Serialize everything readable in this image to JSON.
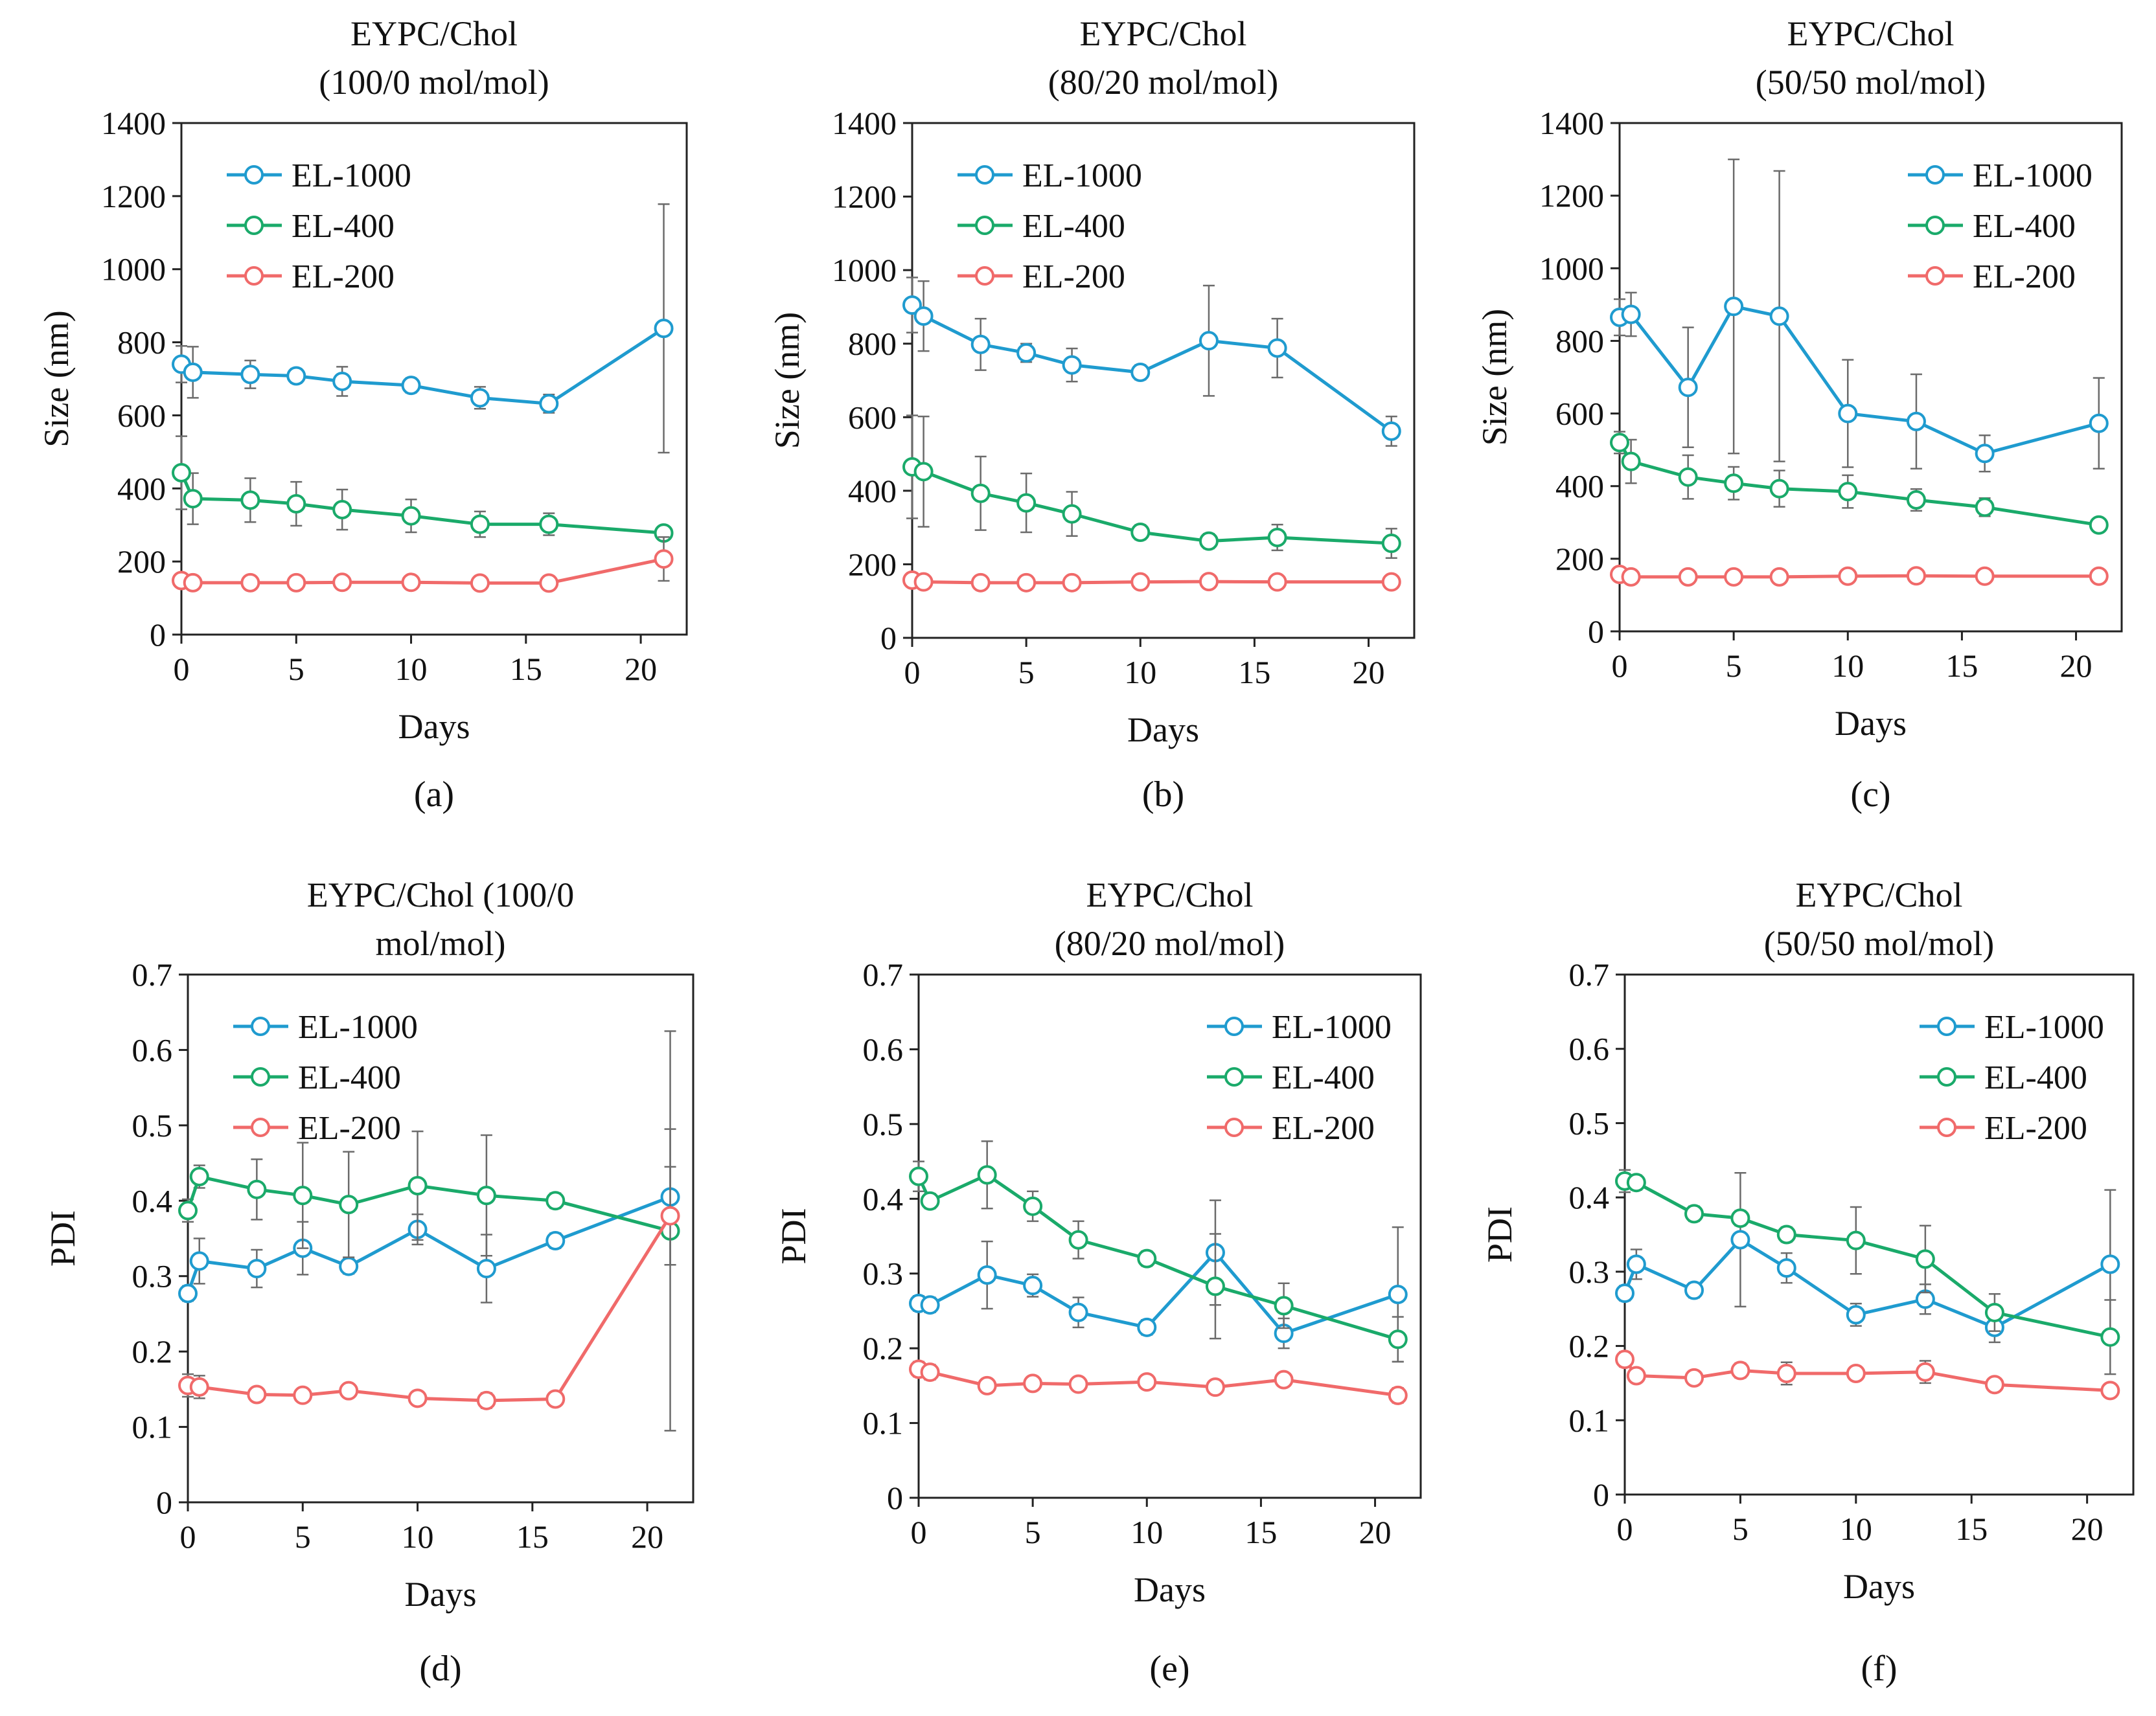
{
  "figure": {
    "series_colors": {
      "EL-1000": "#1f9bcf",
      "EL-400": "#1aaa6a",
      "EL-200": "#f06a6a"
    }
  },
  "chart_data": [
    {
      "panel": "(a)",
      "type": "line",
      "title_lines": [
        "EYPC/Chol",
        "(100/0 mol/mol)"
      ],
      "xlabel": "Days",
      "ylabel": "Size (nm)",
      "xlim": [
        0,
        22
      ],
      "ylim": [
        0,
        1400
      ],
      "xticks": [
        0,
        5,
        10,
        15,
        20
      ],
      "yticks": [
        0,
        200,
        400,
        600,
        800,
        1000,
        1200,
        1400
      ],
      "legend_position": "top-left",
      "series": [
        {
          "name": "EL-1000",
          "x": [
            0,
            0.5,
            3,
            5,
            7,
            10,
            13,
            16,
            21
          ],
          "y": [
            740,
            718,
            712,
            708,
            693,
            682,
            648,
            632,
            838
          ],
          "err": [
            50,
            70,
            38,
            20,
            40,
            20,
            30,
            25,
            340
          ]
        },
        {
          "name": "EL-400",
          "x": [
            0,
            0.5,
            3,
            5,
            7,
            10,
            13,
            16,
            21
          ],
          "y": [
            443,
            372,
            368,
            358,
            342,
            325,
            302,
            302,
            278
          ],
          "err": [
            100,
            70,
            60,
            60,
            55,
            45,
            35,
            30,
            15
          ]
        },
        {
          "name": "EL-200",
          "x": [
            0,
            0.5,
            3,
            5,
            7,
            10,
            13,
            16,
            21
          ],
          "y": [
            148,
            142,
            142,
            142,
            143,
            143,
            141,
            141,
            207
          ],
          "err": [
            8,
            8,
            5,
            5,
            5,
            5,
            5,
            5,
            60
          ]
        }
      ]
    },
    {
      "panel": "(b)",
      "type": "line",
      "title_lines": [
        "EYPC/Chol",
        "(80/20 mol/mol)"
      ],
      "xlabel": "Days",
      "ylabel": "Size (nm)",
      "xlim": [
        0,
        22
      ],
      "ylim": [
        0,
        1400
      ],
      "xticks": [
        0,
        5,
        10,
        15,
        20
      ],
      "yticks": [
        0,
        200,
        400,
        600,
        800,
        1000,
        1200,
        1400
      ],
      "legend_position": "top-left",
      "series": [
        {
          "name": "EL-1000",
          "x": [
            0,
            0.5,
            3,
            5,
            7,
            10,
            13,
            16,
            21
          ],
          "y": [
            905,
            875,
            798,
            775,
            742,
            722,
            808,
            788,
            562
          ],
          "err": [
            75,
            95,
            70,
            25,
            45,
            20,
            150,
            80,
            40
          ]
        },
        {
          "name": "EL-400",
          "x": [
            0,
            0.5,
            3,
            5,
            7,
            10,
            13,
            16,
            21
          ],
          "y": [
            465,
            452,
            393,
            367,
            337,
            287,
            263,
            273,
            257
          ],
          "err": [
            140,
            150,
            100,
            80,
            60,
            20,
            20,
            35,
            40
          ]
        },
        {
          "name": "EL-200",
          "x": [
            0,
            0.5,
            3,
            5,
            7,
            10,
            13,
            16,
            21
          ],
          "y": [
            157,
            152,
            150,
            150,
            150,
            152,
            153,
            152,
            152
          ],
          "err": [
            8,
            8,
            5,
            5,
            5,
            5,
            5,
            5,
            5
          ]
        }
      ]
    },
    {
      "panel": "(c)",
      "type": "line",
      "title_lines": [
        "EYPC/Chol",
        "(50/50 mol/mol)"
      ],
      "xlabel": "Days",
      "ylabel": "Size (nm)",
      "xlim": [
        0,
        22
      ],
      "ylim": [
        0,
        1400
      ],
      "xticks": [
        0,
        5,
        10,
        15,
        20
      ],
      "yticks": [
        0,
        200,
        400,
        600,
        800,
        1000,
        1200,
        1400
      ],
      "legend_position": "top-right",
      "series": [
        {
          "name": "EL-1000",
          "x": [
            0,
            0.5,
            3,
            5,
            7,
            10,
            13,
            16,
            21
          ],
          "y": [
            865,
            873,
            672,
            895,
            868,
            600,
            578,
            490,
            573
          ],
          "err": [
            50,
            60,
            165,
            405,
            400,
            148,
            130,
            50,
            125
          ]
        },
        {
          "name": "EL-400",
          "x": [
            0,
            0.5,
            3,
            5,
            7,
            10,
            13,
            16,
            21
          ],
          "y": [
            520,
            468,
            425,
            408,
            393,
            385,
            362,
            342,
            293
          ],
          "err": [
            30,
            60,
            60,
            45,
            50,
            45,
            30,
            25,
            15
          ]
        },
        {
          "name": "EL-200",
          "x": [
            0,
            0.5,
            3,
            5,
            7,
            10,
            13,
            16,
            21
          ],
          "y": [
            157,
            150,
            150,
            150,
            150,
            152,
            153,
            152,
            152
          ],
          "err": [
            8,
            8,
            5,
            5,
            5,
            5,
            5,
            5,
            5
          ]
        }
      ]
    },
    {
      "panel": "(d)",
      "type": "line",
      "title_lines": [
        "EYPC/Chol (100/0",
        "mol/mol)"
      ],
      "xlabel": "Days",
      "ylabel": "PDI",
      "xlim": [
        0,
        22
      ],
      "ylim": [
        0,
        0.7
      ],
      "xticks": [
        0,
        5,
        10,
        15,
        20
      ],
      "yticks": [
        0,
        0.1,
        0.2,
        0.3,
        0.4,
        0.5,
        0.6,
        0.7
      ],
      "legend_position": "top-left",
      "series": [
        {
          "name": "EL-1000",
          "x": [
            0,
            0.5,
            3,
            5,
            7,
            10,
            13,
            16,
            21
          ],
          "y": [
            0.277,
            0.32,
            0.31,
            0.337,
            0.313,
            0.362,
            0.31,
            0.347,
            0.405
          ],
          "err": [
            0.01,
            0.03,
            0.025,
            0.035,
            0.01,
            0.02,
            0.045,
            0.01,
            0.09
          ]
        },
        {
          "name": "EL-400",
          "x": [
            0,
            0.5,
            3,
            5,
            7,
            10,
            13,
            16,
            21
          ],
          "y": [
            0.387,
            0.432,
            0.415,
            0.407,
            0.395,
            0.42,
            0.407,
            0.4,
            0.36
          ],
          "err": [
            0.015,
            0.015,
            0.04,
            0.07,
            0.07,
            0.072,
            0.08,
            0.01,
            0.265
          ]
        },
        {
          "name": "EL-200",
          "x": [
            0,
            0.5,
            3,
            5,
            7,
            10,
            13,
            16,
            21
          ],
          "y": [
            0.155,
            0.153,
            0.143,
            0.142,
            0.148,
            0.138,
            0.135,
            0.137,
            0.38
          ],
          "err": [
            0.015,
            0.015,
            0.005,
            0.005,
            0.005,
            0.005,
            0.01,
            0.005,
            0.065
          ]
        }
      ]
    },
    {
      "panel": "(e)",
      "type": "line",
      "title_lines": [
        "EYPC/Chol",
        "(80/20 mol/mol)"
      ],
      "xlabel": "Days",
      "ylabel": "PDI",
      "xlim": [
        0,
        22
      ],
      "ylim": [
        0,
        0.7
      ],
      "xticks": [
        0,
        5,
        10,
        15,
        20
      ],
      "yticks": [
        0,
        0.1,
        0.2,
        0.3,
        0.4,
        0.5,
        0.6,
        0.7
      ],
      "legend_position": "top-right",
      "series": [
        {
          "name": "EL-1000",
          "x": [
            0,
            0.5,
            3,
            5,
            7,
            10,
            13,
            16,
            21
          ],
          "y": [
            0.26,
            0.258,
            0.298,
            0.284,
            0.248,
            0.228,
            0.328,
            0.22,
            0.272
          ],
          "err": [
            0.01,
            0.01,
            0.045,
            0.015,
            0.02,
            0.01,
            0.07,
            0.02,
            0.09
          ]
        },
        {
          "name": "EL-400",
          "x": [
            0,
            0.5,
            3,
            5,
            7,
            10,
            13,
            16,
            21
          ],
          "y": [
            0.43,
            0.397,
            0.432,
            0.39,
            0.345,
            0.32,
            0.283,
            0.257,
            0.212
          ],
          "err": [
            0.02,
            0.01,
            0.045,
            0.02,
            0.025,
            0.01,
            0.07,
            0.03,
            0.03
          ]
        },
        {
          "name": "EL-200",
          "x": [
            0,
            0.5,
            3,
            5,
            7,
            10,
            13,
            16,
            21
          ],
          "y": [
            0.172,
            0.168,
            0.15,
            0.153,
            0.152,
            0.155,
            0.148,
            0.158,
            0.137
          ],
          "err": [
            0.01,
            0.01,
            0.005,
            0.005,
            0.005,
            0.005,
            0.005,
            0.005,
            0.01
          ]
        }
      ]
    },
    {
      "panel": "(f)",
      "type": "line",
      "title_lines": [
        "EYPC/Chol",
        "(50/50 mol/mol)"
      ],
      "xlabel": "Days",
      "ylabel": "PDI",
      "xlim": [
        0,
        22
      ],
      "ylim": [
        0,
        0.7
      ],
      "xticks": [
        0,
        5,
        10,
        15,
        20
      ],
      "yticks": [
        0,
        0.1,
        0.2,
        0.3,
        0.4,
        0.5,
        0.6,
        0.7
      ],
      "legend_position": "top-right",
      "series": [
        {
          "name": "EL-1000",
          "x": [
            0,
            0.5,
            3,
            5,
            7,
            10,
            13,
            16,
            21
          ],
          "y": [
            0.271,
            0.31,
            0.275,
            0.343,
            0.305,
            0.242,
            0.263,
            0.225,
            0.31
          ],
          "err": [
            0.01,
            0.02,
            0.01,
            0.09,
            0.02,
            0.015,
            0.02,
            0.02,
            0.1
          ]
        },
        {
          "name": "EL-400",
          "x": [
            0,
            0.5,
            3,
            5,
            7,
            10,
            13,
            16,
            21
          ],
          "y": [
            0.422,
            0.42,
            0.378,
            0.372,
            0.35,
            0.342,
            0.317,
            0.245,
            0.212
          ],
          "err": [
            0.015,
            0.01,
            0.01,
            0.01,
            0.01,
            0.045,
            0.045,
            0.025,
            0.05
          ]
        },
        {
          "name": "EL-200",
          "x": [
            0,
            0.5,
            3,
            5,
            7,
            10,
            13,
            16,
            21
          ],
          "y": [
            0.182,
            0.16,
            0.157,
            0.167,
            0.163,
            0.163,
            0.165,
            0.148,
            0.14
          ],
          "err": [
            0.01,
            0.005,
            0.005,
            0.01,
            0.015,
            0.005,
            0.015,
            0.005,
            0.005
          ]
        }
      ]
    }
  ]
}
